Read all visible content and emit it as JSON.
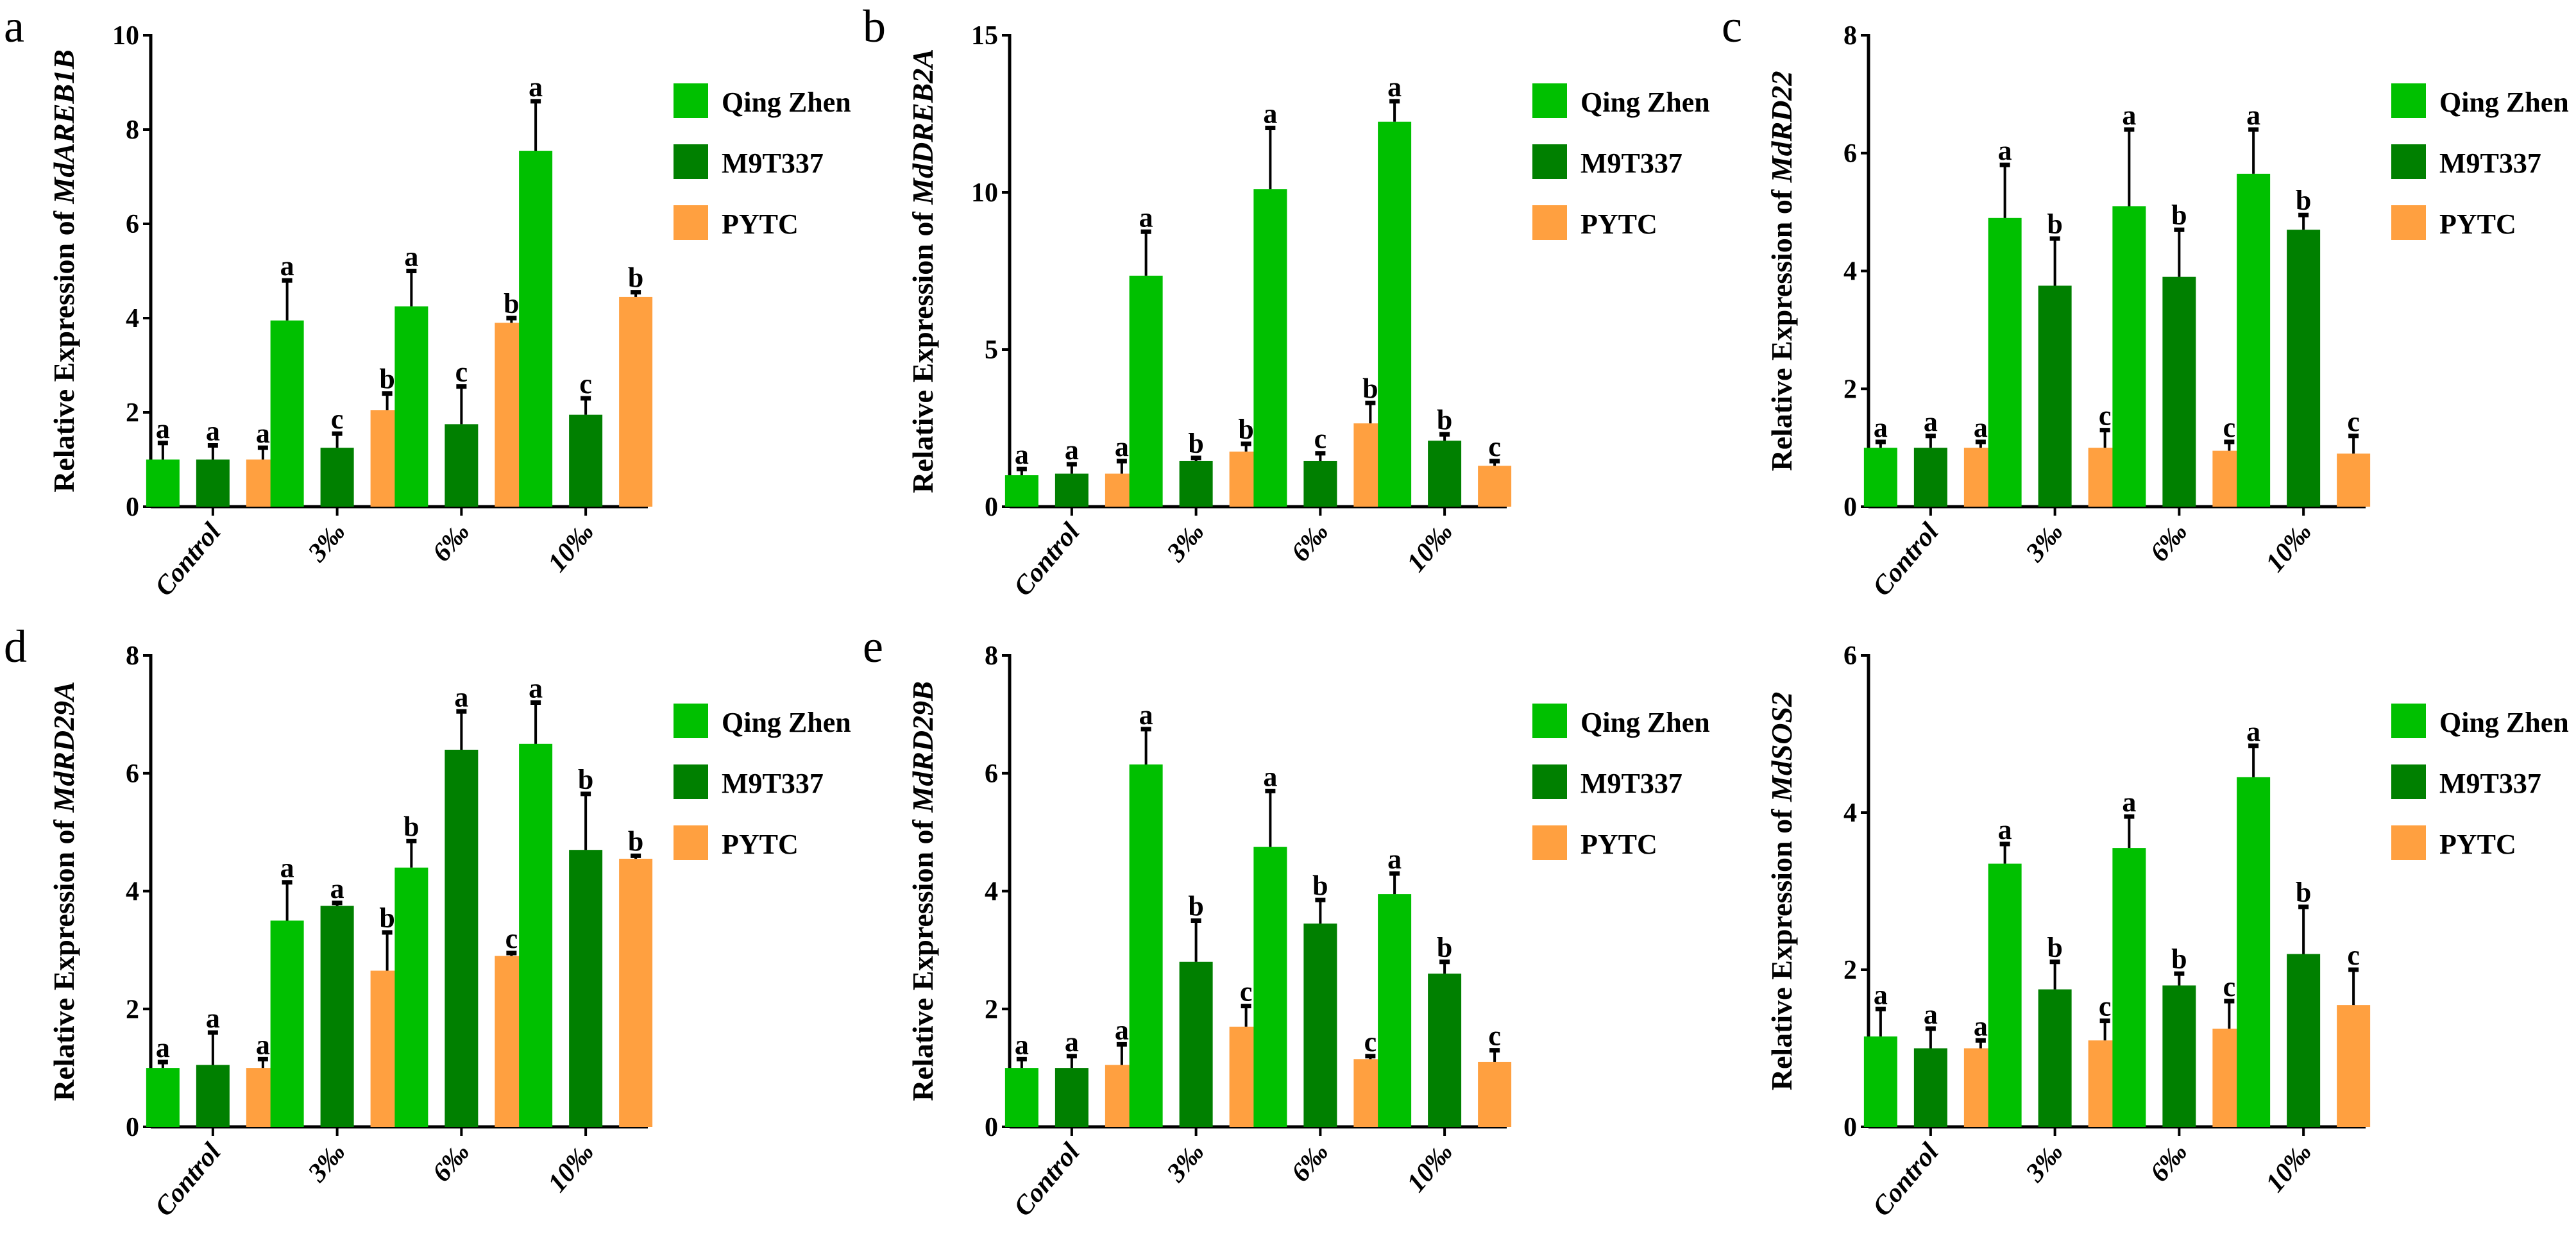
{
  "colors": {
    "Qing Zhen 1": "#00C000",
    "M9T337": "#008000",
    "PYTC": "#FFA040"
  },
  "legend": [
    "Qing Zhen 1",
    "M9T337",
    "PYTC"
  ],
  "chart_data": [
    {
      "type": "bar",
      "panel_label": "a",
      "ylabel_prefix": "Relative Expression of ",
      "gene": "MdAREB1B",
      "ylim": [
        0,
        10
      ],
      "yticks": [
        0,
        2,
        4,
        6,
        8,
        10
      ],
      "categories": [
        "Control",
        "3‰",
        "6‰",
        "10‰"
      ],
      "series": [
        {
          "name": "Qing Zhen 1",
          "values": [
            1.0,
            3.95,
            4.25,
            7.55
          ],
          "errors": [
            0.35,
            0.85,
            0.75,
            1.05
          ],
          "letters": [
            "a",
            "a",
            "a",
            "a"
          ]
        },
        {
          "name": "M9T337",
          "values": [
            1.0,
            1.25,
            1.75,
            1.95
          ],
          "errors": [
            0.3,
            0.3,
            0.8,
            0.35
          ],
          "letters": [
            "a",
            "c",
            "c",
            "c"
          ]
        },
        {
          "name": "PYTC",
          "values": [
            1.0,
            2.05,
            3.9,
            4.45
          ],
          "errors": [
            0.25,
            0.35,
            0.1,
            0.1
          ],
          "letters": [
            "a",
            "b",
            "b",
            "b"
          ]
        }
      ]
    },
    {
      "type": "bar",
      "panel_label": "b",
      "ylabel_prefix": "Relative Expression of ",
      "gene": "MdDREB2A",
      "ylim": [
        0,
        15
      ],
      "yticks": [
        0,
        5,
        10,
        15
      ],
      "categories": [
        "Control",
        "3‰",
        "6‰",
        "10‰"
      ],
      "series": [
        {
          "name": "Qing Zhen 1",
          "values": [
            1.0,
            7.35,
            10.1,
            12.25
          ],
          "errors": [
            0.2,
            1.4,
            1.95,
            0.65
          ],
          "letters": [
            "a",
            "a",
            "a",
            "a"
          ]
        },
        {
          "name": "M9T337",
          "values": [
            1.05,
            1.45,
            1.45,
            2.1
          ],
          "errors": [
            0.3,
            0.1,
            0.25,
            0.2
          ],
          "letters": [
            "a",
            "b",
            "c",
            "b"
          ]
        },
        {
          "name": "PYTC",
          "values": [
            1.05,
            1.75,
            2.65,
            1.3
          ],
          "errors": [
            0.4,
            0.25,
            0.65,
            0.15
          ],
          "letters": [
            "a",
            "b",
            "b",
            "c"
          ]
        }
      ]
    },
    {
      "type": "bar",
      "panel_label": "c",
      "ylabel_prefix": "Relative Expression of ",
      "gene": "MdRD22",
      "ylim": [
        0,
        8
      ],
      "yticks": [
        0,
        2,
        4,
        6,
        8
      ],
      "categories": [
        "Control",
        "3‰",
        "6‰",
        "10‰"
      ],
      "series": [
        {
          "name": "Qing Zhen 1",
          "values": [
            1.0,
            4.9,
            5.1,
            5.65
          ],
          "errors": [
            0.1,
            0.9,
            1.3,
            0.75
          ],
          "letters": [
            "a",
            "a",
            "a",
            "a"
          ]
        },
        {
          "name": "M9T337",
          "values": [
            1.0,
            3.75,
            3.9,
            4.7
          ],
          "errors": [
            0.2,
            0.8,
            0.8,
            0.25
          ],
          "letters": [
            "a",
            "b",
            "b",
            "b"
          ]
        },
        {
          "name": "PYTC",
          "values": [
            1.0,
            1.0,
            0.95,
            0.9
          ],
          "errors": [
            0.1,
            0.3,
            0.15,
            0.3
          ],
          "letters": [
            "a",
            "c",
            "c",
            "c"
          ]
        }
      ]
    },
    {
      "type": "bar",
      "panel_label": "d",
      "ylabel_prefix": "Relative Expression of ",
      "gene": "MdRD29A",
      "ylim": [
        0,
        8
      ],
      "yticks": [
        0,
        2,
        4,
        6,
        8
      ],
      "categories": [
        "Control",
        "3‰",
        "6‰",
        "10‰"
      ],
      "series": [
        {
          "name": "Qing Zhen 1",
          "values": [
            1.0,
            3.5,
            4.4,
            6.5
          ],
          "errors": [
            0.1,
            0.65,
            0.45,
            0.7
          ],
          "letters": [
            "a",
            "a",
            "b",
            "a"
          ]
        },
        {
          "name": "M9T337",
          "values": [
            1.05,
            3.75,
            6.4,
            4.7
          ],
          "errors": [
            0.55,
            0.05,
            0.65,
            0.95
          ],
          "letters": [
            "a",
            "a",
            "a",
            "b"
          ]
        },
        {
          "name": "PYTC",
          "values": [
            1.0,
            2.65,
            2.9,
            4.55
          ],
          "errors": [
            0.15,
            0.65,
            0.05,
            0.05
          ],
          "letters": [
            "a",
            "b",
            "c",
            "b"
          ]
        }
      ]
    },
    {
      "type": "bar",
      "panel_label": "e",
      "ylabel_prefix": "Relative Expression of ",
      "gene": "MdRD29B",
      "ylim": [
        0,
        8
      ],
      "yticks": [
        0,
        2,
        4,
        6,
        8
      ],
      "categories": [
        "Control",
        "3‰",
        "6‰",
        "10‰"
      ],
      "series": [
        {
          "name": "Qing Zhen 1",
          "values": [
            1.0,
            6.15,
            4.75,
            3.95
          ],
          "errors": [
            0.15,
            0.6,
            0.95,
            0.35
          ],
          "letters": [
            "a",
            "a",
            "a",
            "a"
          ]
        },
        {
          "name": "M9T337",
          "values": [
            1.0,
            2.8,
            3.45,
            2.6
          ],
          "errors": [
            0.2,
            0.7,
            0.4,
            0.2
          ],
          "letters": [
            "a",
            "b",
            "b",
            "b"
          ]
        },
        {
          "name": "PYTC",
          "values": [
            1.05,
            1.7,
            1.15,
            1.1
          ],
          "errors": [
            0.35,
            0.35,
            0.05,
            0.2
          ],
          "letters": [
            "a",
            "c",
            "c",
            "c"
          ]
        }
      ]
    },
    {
      "type": "bar",
      "panel_label": "",
      "ylabel_prefix": "Relative Expression of ",
      "gene": "MdSOS2",
      "ylim": [
        0,
        6
      ],
      "yticks": [
        0,
        2,
        4,
        6
      ],
      "categories": [
        "Control",
        "3‰",
        "6‰",
        "10‰"
      ],
      "series": [
        {
          "name": "Qing Zhen 1",
          "values": [
            1.15,
            3.35,
            3.55,
            4.45
          ],
          "errors": [
            0.35,
            0.25,
            0.4,
            0.4
          ],
          "letters": [
            "a",
            "a",
            "a",
            "a"
          ]
        },
        {
          "name": "M9T337",
          "values": [
            1.0,
            1.75,
            1.8,
            2.2
          ],
          "errors": [
            0.25,
            0.35,
            0.15,
            0.6
          ],
          "letters": [
            "a",
            "b",
            "b",
            "b"
          ]
        },
        {
          "name": "PYTC",
          "values": [
            1.0,
            1.1,
            1.25,
            1.55
          ],
          "errors": [
            0.1,
            0.25,
            0.35,
            0.45
          ],
          "letters": [
            "a",
            "c",
            "c",
            "c"
          ]
        }
      ]
    }
  ]
}
